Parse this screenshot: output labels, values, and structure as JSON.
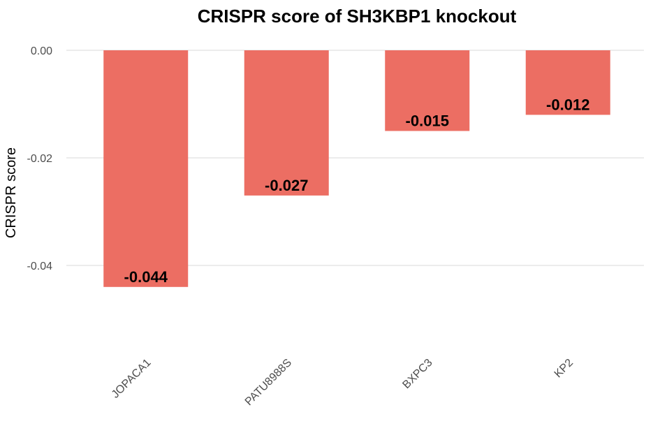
{
  "chart_data": {
    "type": "bar",
    "title": "CRISPR score of SH3KBP1 knockout",
    "xlabel": "",
    "ylabel": "CRISPR score",
    "categories": [
      "JOPACA1",
      "PATU8988S",
      "BXPC3",
      "KP2"
    ],
    "values": [
      -0.044,
      -0.027,
      -0.015,
      -0.012
    ],
    "data_labels": [
      "-0.044",
      "-0.027",
      "-0.015",
      "-0.012"
    ],
    "y_ticks": [
      0.0,
      -0.02,
      -0.04
    ],
    "y_tick_labels": [
      "0.00",
      "-0.02",
      "-0.04"
    ],
    "ylim": [
      -0.052,
      0.0
    ],
    "grid": true,
    "legend": "none",
    "bar_color": "#ec6e63"
  }
}
